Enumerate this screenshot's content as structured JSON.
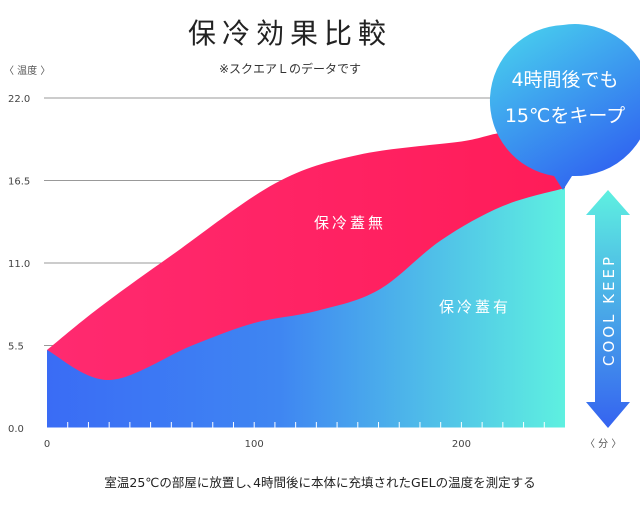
{
  "chart_data": {
    "type": "area",
    "title": "保冷効果比較",
    "subtitle": "※スクエアＬのデータです",
    "ylabel": "〈 温度 〉",
    "xlabel": "〈 分 〉",
    "xlim": [
      0,
      250
    ],
    "ylim": [
      0,
      22
    ],
    "yticks": [
      "0.0",
      "5.5",
      "11.0",
      "16.5",
      "22.0"
    ],
    "xticks": [
      "0",
      "100",
      "200"
    ],
    "grid": true,
    "series": [
      {
        "name": "保冷蓋無",
        "color": "#ff2060",
        "x": [
          0,
          25,
          60,
          110,
          150,
          200,
          225,
          250
        ],
        "y": [
          5.2,
          8.0,
          11.5,
          16.3,
          18.2,
          19.1,
          19.6,
          17.5
        ]
      },
      {
        "name": "保冷蓋有",
        "color": "#3a6cf5",
        "color_end": "#5ef0e0",
        "x": [
          0,
          30,
          70,
          100,
          130,
          160,
          190,
          220,
          250
        ],
        "y": [
          5.2,
          3.2,
          5.5,
          7.0,
          7.8,
          9.2,
          12.5,
          14.8,
          16.0
        ]
      }
    ],
    "callout": {
      "line1": "4時間後でも",
      "line2": "15℃をキープ"
    },
    "arrow_label": "COOL KEEP",
    "footnote": "室温25℃の部屋に放置し､4時間後に本体に充填されたGELの温度を測定する"
  }
}
